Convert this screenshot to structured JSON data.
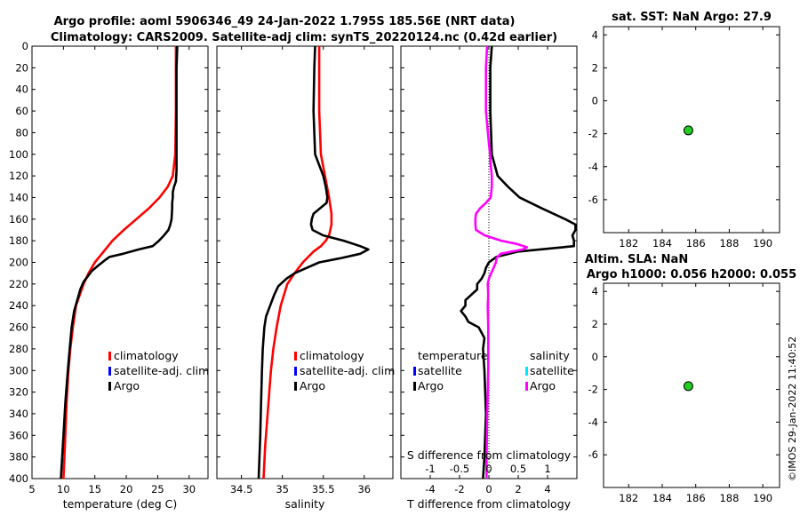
{
  "figure": {
    "title_line1": "Argo profile: aoml 5906346_49 24-Jan-2022 1.795S 185.56E (NRT data)",
    "title_line2": "Climatology: CARS2009. Satellite-adj clim: synTS_20220124.nc (0.42d earlier)",
    "timestamp": "©IMOS 29-Jan-2022 11:40:52"
  },
  "colors": {
    "climatology": "#ff0000",
    "satellite_adj": "#0000ff",
    "argo": "#000000",
    "salinity_diff": "#ff00ff",
    "salinity_sat": "#00e5ff",
    "marker_fill": "#22cc22"
  },
  "legends": {
    "temp": [
      "climatology",
      "satellite-adj. clim",
      "Argo"
    ],
    "sal": [
      "climatology",
      "satellite-adj. clim",
      "Argo"
    ],
    "diff_head_t": "temperature",
    "diff_head_s": "salinity",
    "diff_t": [
      "satellite",
      "Argo"
    ],
    "diff_s": [
      "satellite",
      "Argo"
    ]
  },
  "chart_data": [
    {
      "type": "line",
      "id": "temp",
      "xlabel": "temperature (deg C)",
      "xlim": [
        5,
        33
      ],
      "xticks": [
        5,
        10,
        15,
        20,
        25,
        30
      ],
      "ylim": [
        0,
        400
      ],
      "yticks": [
        0,
        20,
        40,
        60,
        80,
        100,
        120,
        140,
        160,
        180,
        200,
        220,
        240,
        260,
        280,
        300,
        320,
        340,
        360,
        380,
        400
      ],
      "series": [
        {
          "name": "climatology",
          "depth": [
            0,
            20,
            60,
            100,
            120,
            130,
            140,
            150,
            160,
            170,
            180,
            190,
            200,
            210,
            220,
            240,
            260,
            280,
            300,
            330,
            360,
            400
          ],
          "values": [
            27.9,
            27.9,
            27.9,
            27.8,
            27.4,
            26.6,
            25.3,
            23.6,
            21.6,
            19.6,
            17.8,
            16.4,
            15.0,
            14.0,
            13.2,
            12.0,
            11.5,
            11.1,
            10.8,
            10.5,
            10.3,
            10.0
          ]
        },
        {
          "name": "Argo",
          "depth": [
            0,
            20,
            60,
            100,
            115,
            125,
            130,
            135,
            140,
            145,
            150,
            160,
            165,
            170,
            175,
            180,
            185,
            188,
            192,
            195,
            198,
            203,
            208,
            212,
            218,
            225,
            235,
            245,
            260,
            280,
            300,
            330,
            360,
            400
          ],
          "values": [
            28.1,
            28.0,
            28.0,
            28.0,
            28.0,
            27.9,
            27.6,
            27.4,
            27.4,
            27.3,
            27.3,
            27.2,
            27.0,
            26.7,
            26.0,
            25.2,
            24.2,
            22.0,
            19.5,
            17.3,
            16.6,
            15.5,
            14.5,
            14.0,
            13.2,
            12.7,
            12.2,
            11.7,
            11.3,
            11.0,
            10.7,
            10.3,
            10.0,
            9.6
          ]
        }
      ]
    },
    {
      "type": "line",
      "id": "sal",
      "xlabel": "salinity",
      "xlim": [
        34.2,
        36.35
      ],
      "xticks": [
        34.5,
        35,
        35.5,
        36
      ],
      "xticklabels": [
        "34.5",
        "35",
        "35.5",
        "36"
      ],
      "ylim": [
        0,
        400
      ],
      "series": [
        {
          "name": "climatology",
          "depth": [
            0,
            20,
            60,
            100,
            120,
            140,
            155,
            165,
            175,
            180,
            185,
            190,
            200,
            210,
            220,
            240,
            260,
            280,
            300,
            340,
            370,
            400
          ],
          "values": [
            35.45,
            35.45,
            35.45,
            35.47,
            35.52,
            35.57,
            35.6,
            35.6,
            35.57,
            35.53,
            35.47,
            35.38,
            35.25,
            35.15,
            35.06,
            34.98,
            34.93,
            34.89,
            34.86,
            34.82,
            34.79,
            34.77
          ]
        },
        {
          "name": "Argo",
          "depth": [
            0,
            20,
            60,
            100,
            110,
            120,
            130,
            140,
            145,
            150,
            155,
            160,
            165,
            170,
            175,
            180,
            185,
            188,
            192,
            196,
            200,
            205,
            210,
            215,
            222,
            230,
            240,
            250,
            260,
            280,
            300,
            330,
            360,
            400
          ],
          "values": [
            35.4,
            35.39,
            35.38,
            35.4,
            35.45,
            35.5,
            35.53,
            35.55,
            35.54,
            35.46,
            35.38,
            35.36,
            35.35,
            35.37,
            35.5,
            35.75,
            35.95,
            36.05,
            35.95,
            35.72,
            35.45,
            35.3,
            35.15,
            35.05,
            34.95,
            34.9,
            34.85,
            34.8,
            34.78,
            34.76,
            34.75,
            34.74,
            34.73,
            34.71
          ]
        }
      ]
    },
    {
      "type": "line",
      "id": "diff",
      "xlabel": "T difference from climatology",
      "xlabel_top": "S difference from climatology",
      "xlim": [
        -6.0,
        6.0
      ],
      "xticks": [
        -4,
        -2,
        0,
        2,
        4
      ],
      "xlim_top": [
        -1.5,
        1.5
      ],
      "xticks_top": [
        -1,
        -0.5,
        0,
        0.5,
        1
      ],
      "xticklabels_top": [
        "-1",
        "-0.5",
        "0",
        "0.5",
        "1"
      ],
      "ylim": [
        0,
        400
      ],
      "series": [
        {
          "name": "T Argo",
          "axis": "bottom",
          "depth": [
            0,
            20,
            60,
            100,
            120,
            130,
            140,
            150,
            160,
            165,
            170,
            175,
            180,
            185,
            190,
            195,
            200,
            205,
            210,
            215,
            220,
            225,
            230,
            235,
            240,
            245,
            250,
            255,
            260,
            270,
            280,
            300,
            340,
            380,
            400
          ],
          "values": [
            0.2,
            0.1,
            0.1,
            0.2,
            0.6,
            1.3,
            2.1,
            3.6,
            5.2,
            5.9,
            5.9,
            5.7,
            5.8,
            5.8,
            2.0,
            0.5,
            0.0,
            -0.2,
            -0.3,
            -0.5,
            -0.8,
            -0.8,
            -1.2,
            -1.6,
            -1.6,
            -1.9,
            -1.6,
            -1.4,
            -0.7,
            -0.3,
            -0.4,
            -0.3,
            -0.2,
            -0.3,
            -0.4
          ]
        },
        {
          "name": "S Argo",
          "axis": "top",
          "depth": [
            0,
            20,
            60,
            90,
            100,
            110,
            120,
            130,
            140,
            145,
            150,
            155,
            160,
            165,
            170,
            175,
            180,
            183,
            186,
            188,
            192,
            196,
            200,
            205,
            210,
            215,
            220,
            230,
            240,
            260,
            280,
            300,
            320,
            340,
            380,
            400
          ],
          "values": [
            -0.03,
            -0.05,
            -0.05,
            0.0,
            0.02,
            0.03,
            0.05,
            0.05,
            0.03,
            -0.05,
            -0.15,
            -0.22,
            -0.23,
            -0.23,
            -0.22,
            -0.07,
            0.21,
            0.48,
            0.65,
            0.58,
            0.2,
            0.13,
            0.12,
            0.08,
            0.04,
            0.0,
            -0.02,
            -0.01,
            -0.02,
            -0.01,
            -0.01,
            -0.01,
            -0.02,
            -0.03,
            -0.04,
            -0.04
          ]
        }
      ]
    },
    {
      "type": "scatter",
      "id": "sst",
      "title": "sat. SST: NaN Argo: 27.9",
      "xlim": [
        180.5,
        191
      ],
      "xticks": [
        182,
        184,
        186,
        188,
        190
      ],
      "ylim": [
        -8,
        4.5
      ],
      "yticks": [
        4,
        2,
        0,
        -2,
        -4,
        -6
      ],
      "points": [
        {
          "x": 185.56,
          "y": -1.795
        }
      ]
    },
    {
      "type": "scatter",
      "id": "sla",
      "title": "Altim. SLA: NaN",
      "title2": "Argo h1000: 0.056 h2000: 0.055",
      "xlim": [
        180.5,
        191
      ],
      "xticks": [
        182,
        184,
        186,
        188,
        190
      ],
      "ylim": [
        -8,
        4.5
      ],
      "yticks": [
        4,
        2,
        0,
        -2,
        -4,
        -6
      ],
      "points": [
        {
          "x": 185.56,
          "y": -1.795
        }
      ]
    }
  ]
}
